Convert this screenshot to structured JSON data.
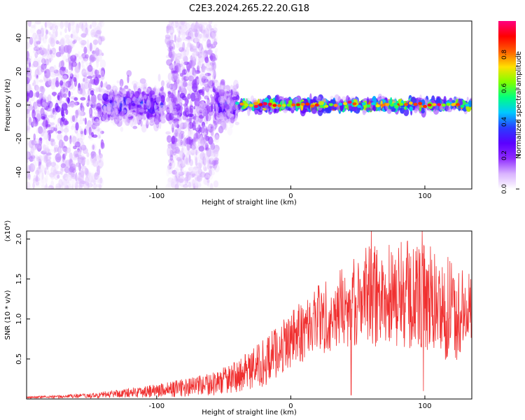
{
  "title": "C2E3.2024.265.22.20.G18",
  "chart_data": [
    {
      "type": "heatmap",
      "xlabel": "Height of straight line (km)",
      "ylabel": "Frequency (Hz)",
      "xlim": [
        -197,
        135
      ],
      "ylim": [
        -50,
        50
      ],
      "x_ticks": [
        -100,
        0,
        100
      ],
      "y_ticks": [
        -40,
        -20,
        0,
        20,
        40
      ],
      "colorbar": {
        "label": "Normalized spectral amplitude",
        "range": [
          0,
          1
        ],
        "ticks": [
          "0.0",
          "0.2",
          "0.4",
          "0.6",
          "0.8"
        ],
        "tick_values": [
          0,
          0.2,
          0.4,
          0.6,
          0.8
        ],
        "colors": [
          "#ffffff",
          "#d9b3ff",
          "#8f2bff",
          "#5a00ff",
          "#2a3cff",
          "#00c8ff",
          "#00ff80",
          "#80ff00",
          "#ffe000",
          "#ff6000",
          "#ff0000",
          "#ff0080"
        ]
      },
      "regions": [
        {
          "x_from": -197,
          "x_to": -140,
          "freq_spread_hz": 50,
          "density": "high",
          "peak_amplitude": 0.25
        },
        {
          "x_from": -140,
          "x_to": -95,
          "freq_spread_hz": 10,
          "density": "high",
          "peak_amplitude": 0.4
        },
        {
          "x_from": -92,
          "x_to": -55,
          "freq_spread_hz": 50,
          "density": "high",
          "peak_amplitude": 0.25
        },
        {
          "x_from": -55,
          "x_to": -40,
          "freq_spread_hz": 10,
          "density": "medium",
          "peak_amplitude": 0.4
        },
        {
          "x_from": -40,
          "x_to": 135,
          "freq_spread_hz": 3,
          "density": "high",
          "peak_amplitude": 0.95
        }
      ]
    },
    {
      "type": "line",
      "xlabel": "Height of straight line (km)",
      "ylabel": "SNR (10 * v/v)",
      "multiplier": "(x10⁴)",
      "xlim": [
        -197,
        135
      ],
      "ylim": [
        0,
        2.1
      ],
      "x_ticks": [
        -100,
        0,
        100
      ],
      "y_ticks": [
        0.5,
        1.0,
        1.5,
        2.0
      ],
      "color": "#f03030",
      "envelope": [
        {
          "x": -197,
          "mean": 0.02,
          "amp": 0.01
        },
        {
          "x": -150,
          "mean": 0.04,
          "amp": 0.03
        },
        {
          "x": -120,
          "mean": 0.08,
          "amp": 0.06
        },
        {
          "x": -90,
          "mean": 0.12,
          "amp": 0.1
        },
        {
          "x": -60,
          "mean": 0.18,
          "amp": 0.14
        },
        {
          "x": -40,
          "mean": 0.28,
          "amp": 0.2
        },
        {
          "x": -20,
          "mean": 0.45,
          "amp": 0.3
        },
        {
          "x": 0,
          "mean": 0.75,
          "amp": 0.35
        },
        {
          "x": 20,
          "mean": 1.0,
          "amp": 0.45
        },
        {
          "x": 40,
          "mean": 1.15,
          "amp": 0.5
        },
        {
          "x": 60,
          "mean": 1.3,
          "amp": 0.65
        },
        {
          "x": 80,
          "mean": 1.3,
          "amp": 0.7
        },
        {
          "x": 100,
          "mean": 1.25,
          "amp": 0.7
        },
        {
          "x": 120,
          "mean": 1.1,
          "amp": 0.65
        },
        {
          "x": 135,
          "mean": 1.05,
          "amp": 0.5
        }
      ],
      "notable_points": [
        {
          "x": 45,
          "y": 0.05
        },
        {
          "x": 60,
          "y": 2.1
        },
        {
          "x": 98,
          "y": 2.1
        },
        {
          "x": 99,
          "y": 0.1
        }
      ]
    }
  ]
}
